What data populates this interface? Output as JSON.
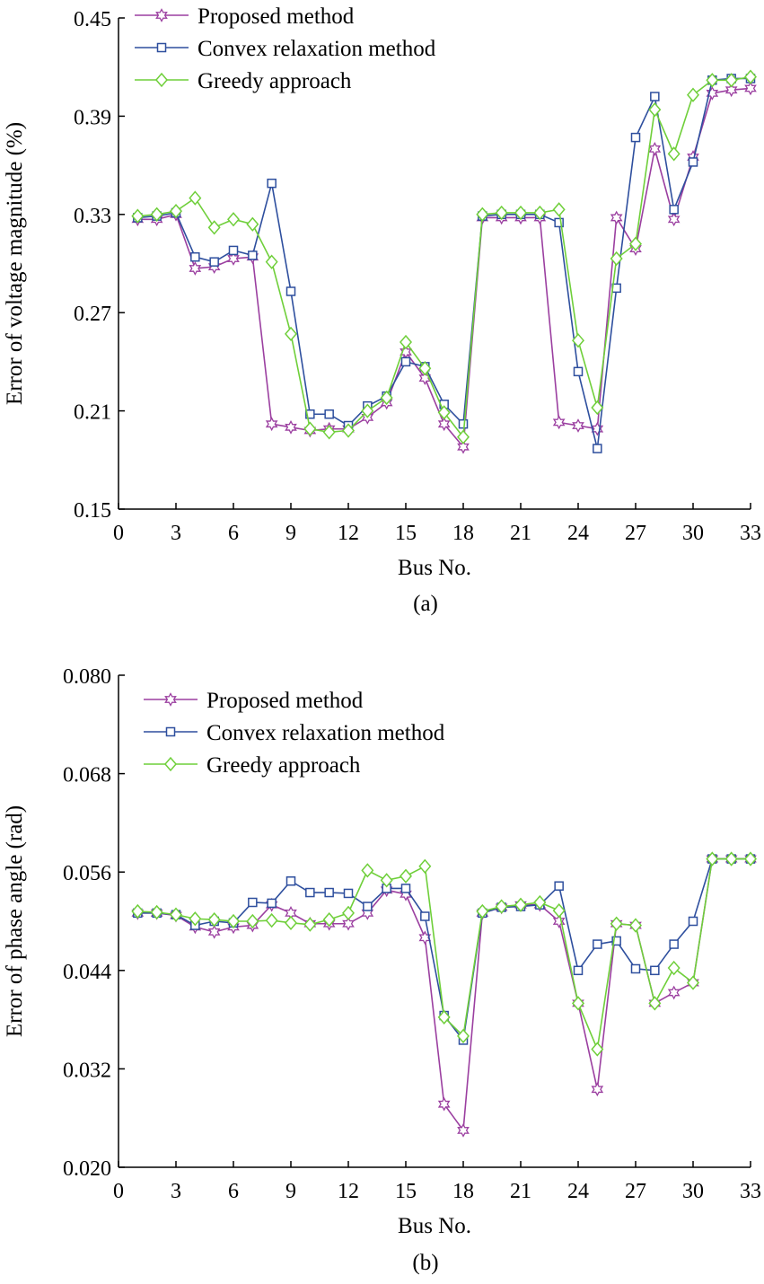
{
  "chart_data": [
    {
      "type": "line",
      "panel_label": "(a)",
      "xlabel": "Bus No.",
      "ylabel": "Error of voltage magnitude (%)",
      "xlim": [
        0,
        33
      ],
      "ylim": [
        0.15,
        0.45
      ],
      "xticks": [
        0,
        3,
        6,
        9,
        12,
        15,
        18,
        21,
        24,
        27,
        30,
        33
      ],
      "yticks": [
        "0.15",
        "0.21",
        "0.27",
        "0.33",
        "0.39",
        "0.45"
      ],
      "legend_position": "top-left",
      "x": [
        1,
        2,
        3,
        4,
        5,
        6,
        7,
        8,
        9,
        10,
        11,
        12,
        13,
        14,
        15,
        16,
        17,
        18,
        19,
        20,
        21,
        22,
        23,
        24,
        25,
        26,
        27,
        28,
        29,
        30,
        31,
        32,
        33
      ],
      "series": [
        {
          "name": "Proposed method",
          "marker": "star",
          "color": "#9b3fa0",
          "values": [
            0.327,
            0.327,
            0.33,
            0.297,
            0.298,
            0.303,
            0.304,
            0.202,
            0.2,
            0.198,
            0.199,
            0.199,
            0.206,
            0.215,
            0.246,
            0.23,
            0.202,
            0.188,
            0.328,
            0.328,
            0.328,
            0.328,
            0.203,
            0.201,
            0.199,
            0.328,
            0.309,
            0.37,
            0.327,
            0.365,
            0.404,
            0.406,
            0.407
          ]
        },
        {
          "name": "Convex relaxation method",
          "marker": "square",
          "color": "#2e4f9e",
          "values": [
            0.328,
            0.329,
            0.331,
            0.304,
            0.301,
            0.308,
            0.305,
            0.349,
            0.283,
            0.208,
            0.208,
            0.201,
            0.213,
            0.219,
            0.24,
            0.237,
            0.214,
            0.202,
            0.329,
            0.33,
            0.33,
            0.33,
            0.325,
            0.234,
            0.187,
            0.285,
            0.377,
            0.402,
            0.333,
            0.362,
            0.412,
            0.413,
            0.413
          ]
        },
        {
          "name": "Greedy approach",
          "marker": "diamond",
          "color": "#6fcf3a",
          "values": [
            0.329,
            0.33,
            0.332,
            0.34,
            0.322,
            0.327,
            0.324,
            0.301,
            0.257,
            0.199,
            0.197,
            0.198,
            0.21,
            0.218,
            0.252,
            0.236,
            0.209,
            0.194,
            0.33,
            0.331,
            0.331,
            0.331,
            0.333,
            0.253,
            0.212,
            0.303,
            0.312,
            0.394,
            0.367,
            0.403,
            0.412,
            0.412,
            0.414
          ]
        }
      ]
    },
    {
      "type": "line",
      "panel_label": "(b)",
      "xlabel": "Bus No.",
      "ylabel": "Error of phase angle (rad)",
      "xlim": [
        0,
        33
      ],
      "ylim": [
        0.02,
        0.08
      ],
      "xticks": [
        0,
        3,
        6,
        9,
        12,
        15,
        18,
        21,
        24,
        27,
        30,
        33
      ],
      "yticks": [
        "0.020",
        "0.032",
        "0.044",
        "0.056",
        "0.068",
        "0.080"
      ],
      "legend_position": "top-left",
      "x": [
        1,
        2,
        3,
        4,
        5,
        6,
        7,
        8,
        9,
        10,
        11,
        12,
        13,
        14,
        15,
        16,
        17,
        18,
        19,
        20,
        21,
        22,
        23,
        24,
        25,
        26,
        27,
        28,
        29,
        30,
        31,
        32,
        33
      ],
      "series": [
        {
          "name": "Proposed method",
          "marker": "star",
          "color": "#9b3fa0",
          "values": [
            0.051,
            0.051,
            0.0507,
            0.0493,
            0.0487,
            0.0493,
            0.0495,
            0.052,
            0.051,
            0.0497,
            0.0497,
            0.0497,
            0.051,
            0.0538,
            0.0533,
            0.048,
            0.0277,
            0.0245,
            0.051,
            0.0517,
            0.052,
            0.052,
            0.05,
            0.04,
            0.0295,
            0.0497,
            0.0495,
            0.04,
            0.0413,
            0.0425,
            0.0576,
            0.0576,
            0.0576
          ]
        },
        {
          "name": "Convex relaxation method",
          "marker": "square",
          "color": "#2e4f9e",
          "values": [
            0.051,
            0.051,
            0.0508,
            0.0495,
            0.05,
            0.0498,
            0.0523,
            0.0522,
            0.0549,
            0.0535,
            0.0535,
            0.0534,
            0.0518,
            0.054,
            0.054,
            0.0506,
            0.0385,
            0.0355,
            0.051,
            0.0517,
            0.0518,
            0.052,
            0.0543,
            0.044,
            0.0472,
            0.0476,
            0.0442,
            0.044,
            0.0472,
            0.05,
            0.0576,
            0.0576,
            0.0576
          ]
        },
        {
          "name": "Greedy approach",
          "marker": "diamond",
          "color": "#6fcf3a",
          "values": [
            0.0512,
            0.0511,
            0.0508,
            0.0503,
            0.0502,
            0.05,
            0.05,
            0.0501,
            0.0498,
            0.0496,
            0.0502,
            0.051,
            0.0562,
            0.055,
            0.0555,
            0.0567,
            0.0383,
            0.036,
            0.0512,
            0.0518,
            0.052,
            0.0523,
            0.0513,
            0.04,
            0.0344,
            0.0497,
            0.0495,
            0.04,
            0.0443,
            0.0425,
            0.0576,
            0.0576,
            0.0576
          ]
        }
      ]
    }
  ]
}
